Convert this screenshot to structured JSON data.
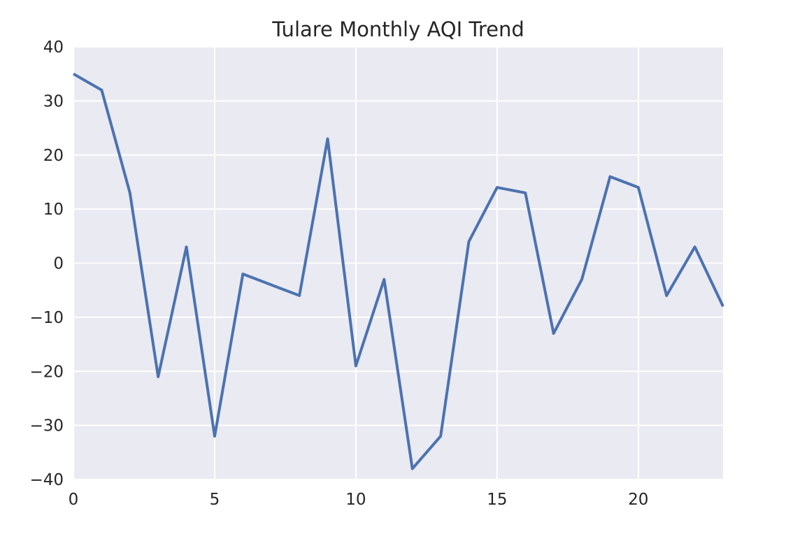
{
  "chart_data": {
    "type": "line",
    "title": "Tulare Monthly AQI Trend",
    "xlabel": "",
    "ylabel": "",
    "x": [
      0,
      1,
      2,
      3,
      4,
      5,
      6,
      7,
      8,
      9,
      10,
      11,
      12,
      13,
      14,
      15,
      16,
      17,
      18,
      19,
      20,
      21,
      22,
      23
    ],
    "series": [
      {
        "values": [
          35,
          32,
          13,
          -21,
          3,
          -32,
          -2,
          -4,
          -6,
          23,
          -19,
          -3,
          -38,
          -32,
          4,
          14,
          13,
          -13,
          -3,
          16,
          14,
          -6,
          3,
          -8
        ],
        "color": "#4c72b0"
      }
    ],
    "xlim": [
      0,
      23
    ],
    "ylim": [
      -40,
      40
    ],
    "xticks": [
      0,
      5,
      10,
      15,
      20
    ],
    "yticks": [
      -40,
      -30,
      -20,
      -10,
      0,
      10,
      20,
      30,
      40
    ],
    "xtick_labels": [
      "0",
      "5",
      "10",
      "15",
      "20"
    ],
    "ytick_labels": [
      "−40",
      "−30",
      "−20",
      "−10",
      "0",
      "10",
      "20",
      "30",
      "40"
    ],
    "grid": true,
    "style": {
      "plot_background": "#eaeaf2",
      "grid_color": "#ffffff",
      "text_color": "#262626"
    }
  }
}
